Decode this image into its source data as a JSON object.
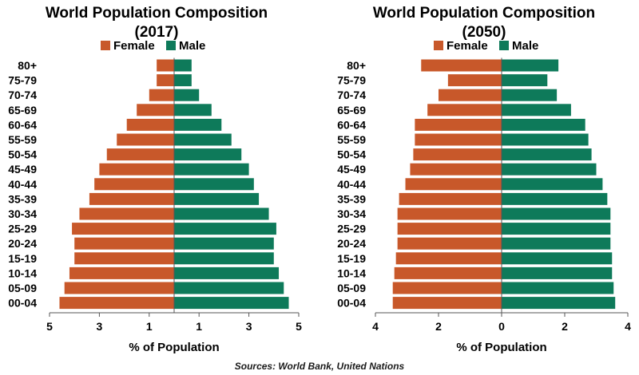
{
  "source": "Sources: World Bank, United Nations",
  "colors": {
    "female": "#c8582a",
    "male": "#0e7a5a",
    "axis": "#555555"
  },
  "chart_data": [
    {
      "type": "bar",
      "orientation": "horizontal-pyramid",
      "title_line1": "World Population Composition",
      "title_line2": "(2017)",
      "xlabel": "% of Population",
      "ylabel": "",
      "xlim": [
        -5,
        5
      ],
      "xticks": [
        -5,
        -3,
        -1,
        1,
        3,
        5
      ],
      "xtick_labels": [
        "5",
        "3",
        "1",
        "1",
        "3",
        "5"
      ],
      "grid": false,
      "legend_position": "top",
      "categories": [
        "80+",
        "75-79",
        "70-74",
        "65-69",
        "60-64",
        "55-59",
        "50-54",
        "45-49",
        "40-44",
        "35-39",
        "30-34",
        "25-29",
        "20-24",
        "15-19",
        "10-14",
        "05-09",
        "00-04"
      ],
      "series": [
        {
          "name": "Female",
          "values": [
            0.7,
            0.7,
            1.0,
            1.5,
            1.9,
            2.3,
            2.7,
            3.0,
            3.2,
            3.4,
            3.8,
            4.1,
            4.0,
            4.0,
            4.2,
            4.4,
            4.6
          ]
        },
        {
          "name": "Male",
          "values": [
            0.7,
            0.7,
            1.0,
            1.5,
            1.9,
            2.3,
            2.7,
            3.0,
            3.2,
            3.4,
            3.8,
            4.1,
            4.0,
            4.0,
            4.2,
            4.4,
            4.6
          ]
        }
      ]
    },
    {
      "type": "bar",
      "orientation": "horizontal-pyramid",
      "title_line1": "World Population Composition",
      "title_line2": "(2050)",
      "xlabel": "% of Population",
      "ylabel": "",
      "xlim": [
        -4,
        4
      ],
      "xticks": [
        -4,
        -2,
        0,
        2,
        4
      ],
      "xtick_labels": [
        "4",
        "2",
        "0",
        "2",
        "4"
      ],
      "grid": false,
      "legend_position": "top",
      "categories": [
        "80+",
        "75-79",
        "70-74",
        "65-69",
        "60-64",
        "55-59",
        "50-54",
        "45-49",
        "40-44",
        "35-39",
        "30-34",
        "25-29",
        "20-24",
        "15-19",
        "10-14",
        "05-09",
        "00-04"
      ],
      "series": [
        {
          "name": "Female",
          "values": [
            2.55,
            1.7,
            2.0,
            2.35,
            2.75,
            2.75,
            2.8,
            2.9,
            3.05,
            3.25,
            3.3,
            3.3,
            3.3,
            3.35,
            3.4,
            3.45,
            3.45
          ]
        },
        {
          "name": "Male",
          "values": [
            1.8,
            1.45,
            1.75,
            2.2,
            2.65,
            2.75,
            2.85,
            3.0,
            3.2,
            3.35,
            3.45,
            3.45,
            3.45,
            3.5,
            3.5,
            3.55,
            3.6
          ]
        }
      ]
    }
  ]
}
